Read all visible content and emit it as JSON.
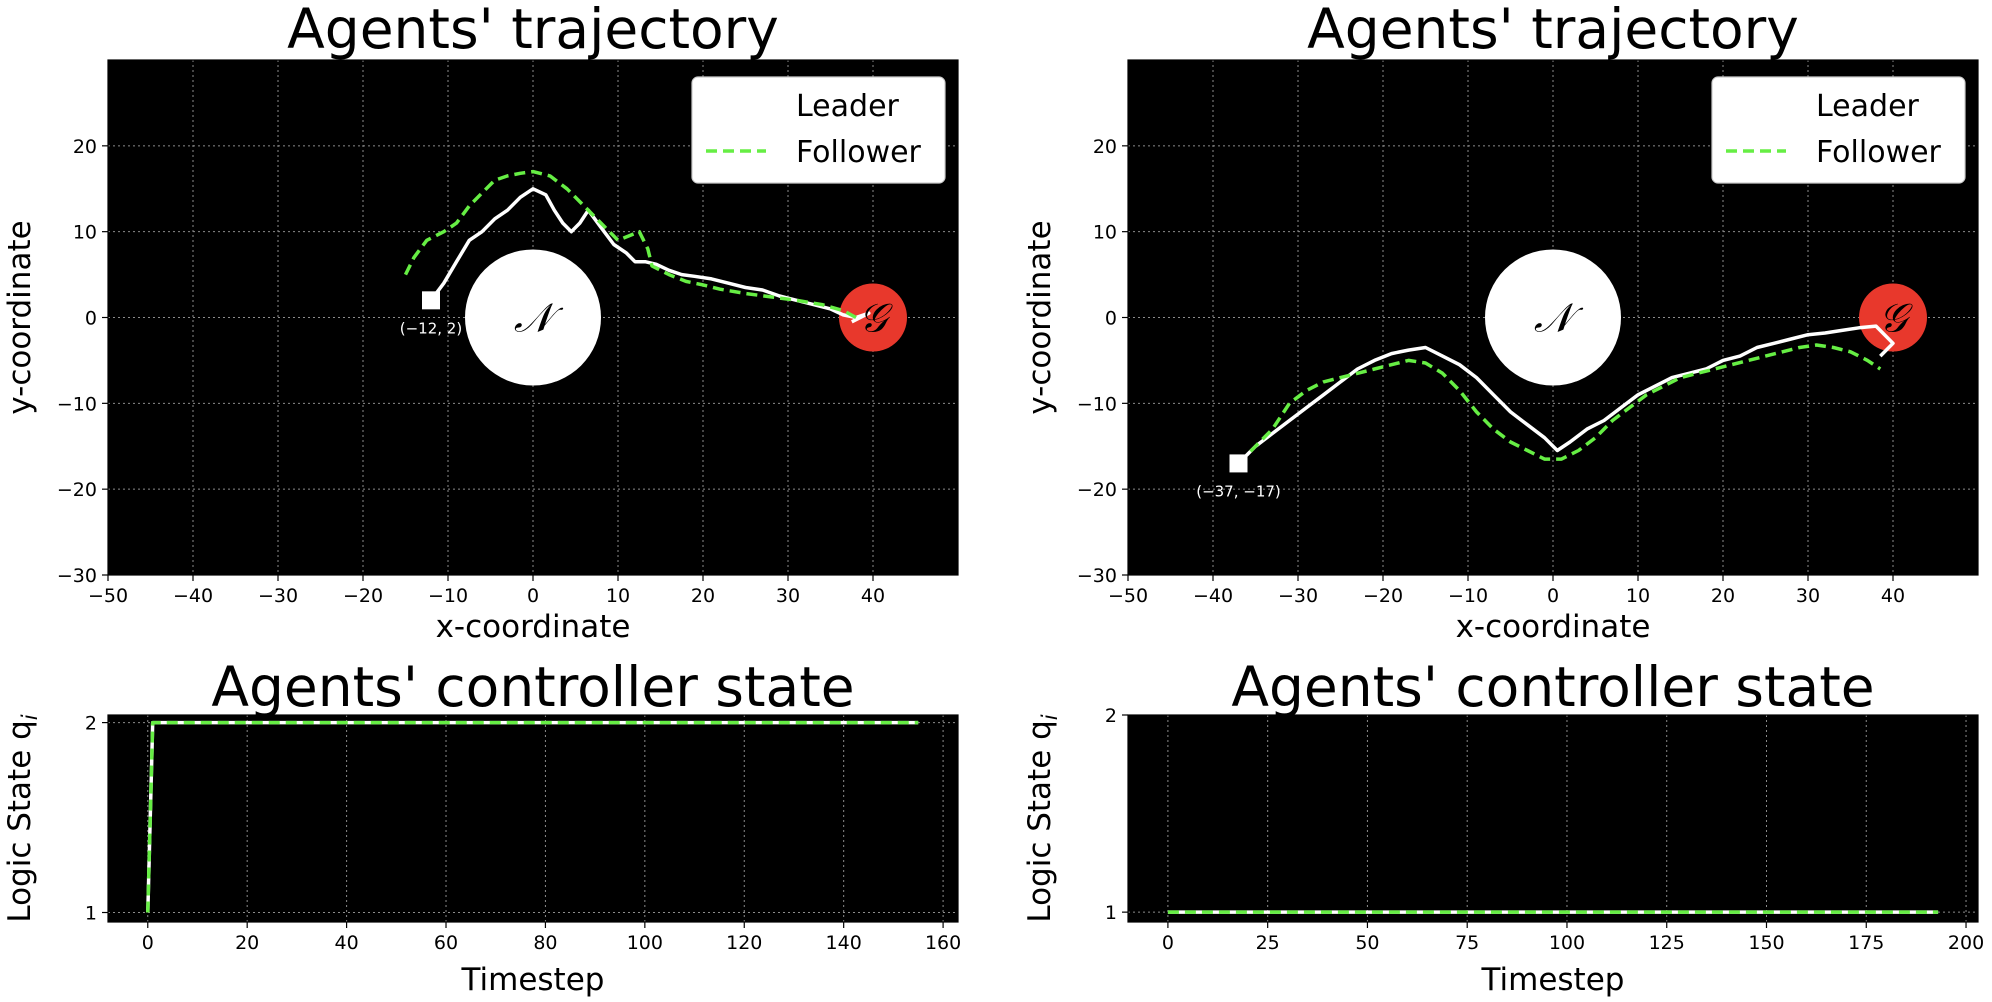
{
  "chart_data": [
    {
      "type": "line",
      "title": "Agents' trajectory",
      "xlabel": "x-coordinate",
      "ylabel": "y-coordinate",
      "xlim": [
        -50,
        50
      ],
      "ylim": [
        -30,
        30
      ],
      "xticks": [
        -50,
        -40,
        -30,
        -20,
        -10,
        0,
        10,
        20,
        30,
        40
      ],
      "yticks": [
        -30,
        -20,
        -10,
        0,
        10,
        20
      ],
      "xtick_labels": [
        "−50",
        "−40",
        "−30",
        "−20",
        "−10",
        "0",
        "10",
        "20",
        "30",
        "40"
      ],
      "ytick_labels": [
        "−30",
        "−20",
        "−10",
        "0",
        "10",
        "20"
      ],
      "grid": true,
      "background": "#000000",
      "legend": {
        "placement": "top-right",
        "entries": [
          "Leader",
          "Follower"
        ]
      },
      "obstacle": {
        "label": "𝒩",
        "center": [
          0,
          0
        ],
        "radius": 8,
        "color": "#ffffff"
      },
      "goal": {
        "label": "𝒢",
        "center": [
          40,
          0
        ],
        "radius": 4,
        "color": "#e8382c"
      },
      "start": {
        "point": [
          -12,
          2
        ],
        "label": "(−12, 2)"
      },
      "series": [
        {
          "name": "Leader",
          "color": "#ffffff",
          "style": "solid",
          "x": [
            -12,
            -10.5,
            -9,
            -7.5,
            -6,
            -4.5,
            -3,
            -1.5,
            0,
            1.5,
            2.5,
            3.5,
            4.5,
            5.5,
            6.5,
            8,
            9.5,
            11,
            12,
            13.2,
            14.5,
            16,
            17.5,
            19,
            21,
            23,
            25,
            27,
            29,
            31,
            33,
            35,
            36.5,
            38,
            39.5,
            37.5
          ],
          "y": [
            2,
            4,
            6.5,
            9,
            10,
            11.5,
            12.5,
            14,
            15,
            14.3,
            12.5,
            11,
            10,
            11,
            12.5,
            10.5,
            8.5,
            7.5,
            6.5,
            6.5,
            6.2,
            5.5,
            5,
            4.8,
            4.5,
            4,
            3.5,
            3.2,
            2.5,
            2,
            1.5,
            1,
            0.3,
            0,
            0.5,
            -0.5
          ]
        },
        {
          "name": "Follower",
          "color": "#66ee44",
          "style": "dashed",
          "x": [
            -15,
            -14,
            -12.5,
            -10.5,
            -9,
            -7.5,
            -6,
            -4.5,
            -3,
            -1.5,
            0,
            2,
            4,
            6,
            8,
            10,
            12.5,
            13.5,
            14,
            16,
            18,
            20,
            22,
            25,
            28,
            31,
            34,
            36.5,
            38
          ],
          "y": [
            5,
            7,
            9,
            10,
            11,
            13,
            14.5,
            16,
            16.5,
            16.8,
            17,
            16.5,
            15,
            13,
            11,
            9,
            10,
            8,
            6,
            5,
            4.2,
            3.8,
            3.3,
            2.8,
            2.4,
            2,
            1.5,
            0.8,
            0
          ]
        }
      ]
    },
    {
      "type": "line",
      "title": "Agents' trajectory",
      "xlabel": "x-coordinate",
      "ylabel": "y-coordinate",
      "xlim": [
        -50,
        50
      ],
      "ylim": [
        -30,
        30
      ],
      "xticks": [
        -50,
        -40,
        -30,
        -20,
        -10,
        0,
        10,
        20,
        30,
        40
      ],
      "yticks": [
        -30,
        -20,
        -10,
        0,
        10,
        20
      ],
      "xtick_labels": [
        "−50",
        "−40",
        "−30",
        "−20",
        "−10",
        "0",
        "10",
        "20",
        "30",
        "40"
      ],
      "ytick_labels": [
        "−30",
        "−20",
        "−10",
        "0",
        "10",
        "20"
      ],
      "grid": true,
      "background": "#000000",
      "legend": {
        "placement": "top-right",
        "entries": [
          "Leader",
          "Follower"
        ]
      },
      "obstacle": {
        "label": "𝒩",
        "center": [
          0,
          0
        ],
        "radius": 8,
        "color": "#ffffff"
      },
      "goal": {
        "label": "𝒢",
        "center": [
          40,
          0
        ],
        "radius": 4,
        "color": "#e8382c"
      },
      "start": {
        "point": [
          -37,
          -17
        ],
        "label": "(−37, −17)"
      },
      "series": [
        {
          "name": "Leader",
          "color": "#ffffff",
          "style": "solid",
          "x": [
            -37,
            -35,
            -33,
            -31,
            -29,
            -27,
            -25,
            -23,
            -21,
            -19,
            -17,
            -15,
            -13,
            -11,
            -9,
            -7,
            -5,
            -3,
            -1,
            0.5,
            2,
            4,
            6,
            8,
            10,
            12,
            14,
            16,
            18,
            20,
            22,
            24,
            26,
            28,
            30,
            32,
            34,
            36,
            38,
            40,
            38.5
          ],
          "y": [
            -17,
            -15,
            -13.5,
            -12,
            -10.5,
            -9,
            -7.5,
            -6,
            -5,
            -4.2,
            -3.8,
            -3.5,
            -4.5,
            -5.5,
            -7,
            -9,
            -11,
            -12.5,
            -14,
            -15.5,
            -14.5,
            -13,
            -12,
            -10.5,
            -9,
            -8,
            -7,
            -6.5,
            -6,
            -5,
            -4.5,
            -3.5,
            -3,
            -2.5,
            -2,
            -1.8,
            -1.5,
            -1.2,
            -1,
            -3,
            -4.5
          ]
        },
        {
          "name": "Follower",
          "color": "#66ee44",
          "style": "dashed",
          "x": [
            -37,
            -35,
            -33,
            -31,
            -29,
            -27,
            -25,
            -23,
            -21,
            -19,
            -17,
            -15,
            -13,
            -11,
            -9,
            -7,
            -5,
            -3,
            -1,
            1,
            3,
            5,
            7,
            9,
            11,
            13,
            15,
            17,
            19,
            21,
            23,
            25,
            27,
            29,
            31,
            33,
            35,
            37,
            38.5
          ],
          "y": [
            -17,
            -15,
            -13,
            -10,
            -8.5,
            -7.5,
            -7,
            -6.5,
            -6,
            -5.5,
            -5,
            -5.3,
            -6.5,
            -8.5,
            -11,
            -13,
            -14.5,
            -15.5,
            -16.5,
            -16.5,
            -15.5,
            -14,
            -12,
            -10.5,
            -9,
            -8,
            -7,
            -6.5,
            -6,
            -5.5,
            -5,
            -4.5,
            -4,
            -3.5,
            -3.2,
            -3.5,
            -4,
            -5,
            -6
          ]
        }
      ]
    },
    {
      "type": "line",
      "title": "Agents' controller state",
      "xlabel": "Timestep",
      "ylabel": "Logic State q",
      "ylabel_sub": "i",
      "xlim": [
        -8,
        163
      ],
      "ylim": [
        0.95,
        2.04
      ],
      "xticks": [
        0,
        20,
        40,
        60,
        80,
        100,
        120,
        140,
        160
      ],
      "yticks": [
        1,
        2
      ],
      "xtick_labels": [
        "0",
        "20",
        "40",
        "60",
        "80",
        "100",
        "120",
        "140",
        "160"
      ],
      "ytick_labels": [
        "1",
        "2"
      ],
      "grid": true,
      "background": "#000000",
      "series": [
        {
          "name": "Leader",
          "color": "#ffffff",
          "style": "solid",
          "x": [
            0,
            1,
            155
          ],
          "y": [
            1,
            2,
            2
          ]
        },
        {
          "name": "Follower",
          "color": "#66ee44",
          "style": "dashed",
          "x": [
            0,
            1,
            155
          ],
          "y": [
            1,
            2,
            2
          ]
        }
      ]
    },
    {
      "type": "line",
      "title": "Agents' controller state",
      "xlabel": "Timestep",
      "ylabel": "Logic State q",
      "ylabel_sub": "i",
      "xlim": [
        -10,
        203
      ],
      "ylim": [
        0.95,
        2.0
      ],
      "xticks": [
        0,
        25,
        50,
        75,
        100,
        125,
        150,
        175,
        200
      ],
      "yticks": [
        1,
        2
      ],
      "xtick_labels": [
        "0",
        "25",
        "50",
        "75",
        "100",
        "125",
        "150",
        "175",
        "200"
      ],
      "ytick_labels": [
        "1",
        "2"
      ],
      "grid": true,
      "background": "#000000",
      "series": [
        {
          "name": "Leader",
          "color": "#ffffff",
          "style": "solid",
          "x": [
            0,
            193
          ],
          "y": [
            1,
            1
          ]
        },
        {
          "name": "Follower",
          "color": "#66ee44",
          "style": "dashed",
          "x": [
            0,
            193
          ],
          "y": [
            1,
            1
          ]
        }
      ]
    }
  ]
}
